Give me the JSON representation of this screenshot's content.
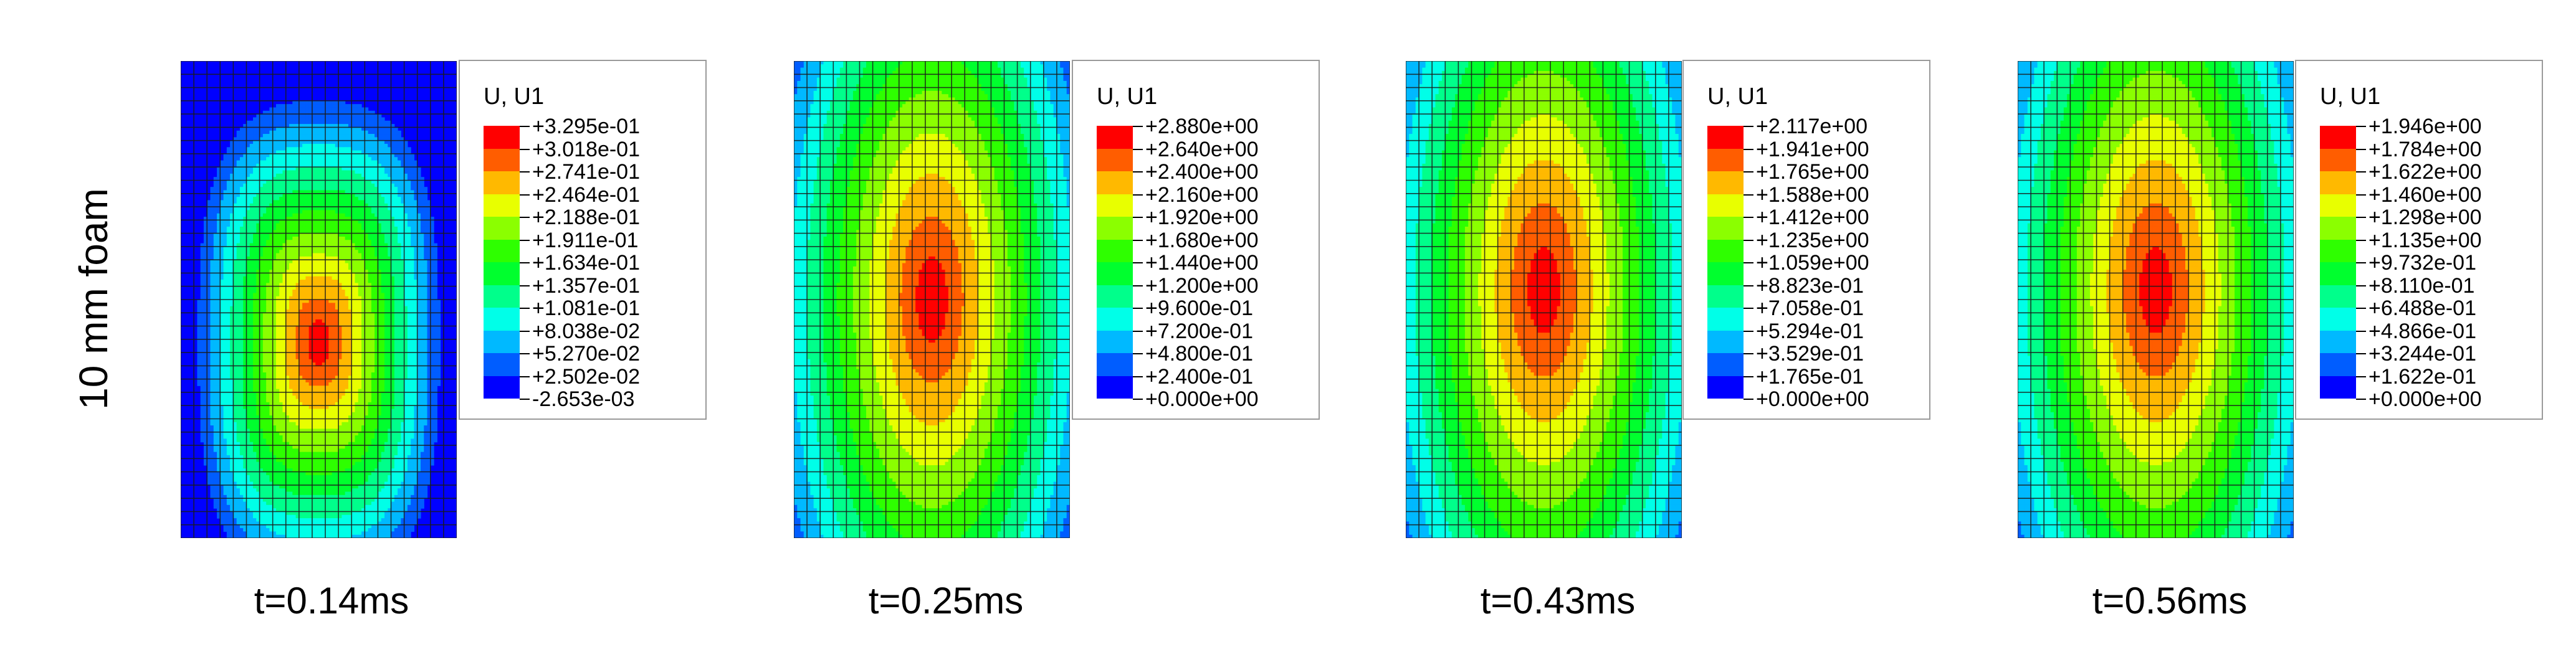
{
  "row_label": "10 mm foam",
  "colors": {
    "scale": [
      "#0000ff",
      "#005dff",
      "#00b9ff",
      "#00ffe8",
      "#00ff8b",
      "#00ff2e",
      "#2eff00",
      "#8bff00",
      "#e8ff00",
      "#ffb900",
      "#ff5d00",
      "#ff0000"
    ],
    "mesh_line": "#1a1a1a",
    "legend_border": "#9a9a9a"
  },
  "chart_data": [
    {
      "type": "heatmap",
      "title": "",
      "variable": "U, U1",
      "time_label": "t=0.14ms",
      "field": {
        "shape": "center-peak",
        "peak_center": [
          0.5,
          0.59
        ],
        "peak_radius": [
          0.5,
          0.58
        ]
      },
      "legend_values": [
        "+3.295e-01",
        "+3.018e-01",
        "+2.741e-01",
        "+2.464e-01",
        "+2.188e-01",
        "+1.911e-01",
        "+1.634e-01",
        "+1.357e-01",
        "+1.081e-01",
        "+8.038e-02",
        "+5.270e-02",
        "+2.502e-02",
        "-2.653e-03"
      ]
    },
    {
      "type": "heatmap",
      "title": "",
      "variable": "U, U1",
      "time_label": "t=0.25ms",
      "field": {
        "shape": "vertical-plume",
        "peak_center": [
          0.5,
          0.5
        ],
        "peak_radius": [
          0.68,
          1.05
        ]
      },
      "legend_values": [
        "+2.880e+00",
        "+2.640e+00",
        "+2.400e+00",
        "+2.160e+00",
        "+1.920e+00",
        "+1.680e+00",
        "+1.440e+00",
        "+1.200e+00",
        "+9.600e-01",
        "+7.200e-01",
        "+4.800e-01",
        "+2.400e-01",
        "+0.000e+00"
      ]
    },
    {
      "type": "heatmap",
      "title": "",
      "variable": "U, U1",
      "time_label": "t=0.43ms",
      "field": {
        "shape": "vertical-plume",
        "peak_center": [
          0.5,
          0.48
        ],
        "peak_radius": [
          0.7,
          1.1
        ]
      },
      "legend_values": [
        "+2.117e+00",
        "+1.941e+00",
        "+1.765e+00",
        "+1.588e+00",
        "+1.412e+00",
        "+1.235e+00",
        "+1.059e+00",
        "+8.823e-01",
        "+7.058e-01",
        "+5.294e-01",
        "+3.529e-01",
        "+1.765e-01",
        "+0.000e+00"
      ]
    },
    {
      "type": "heatmap",
      "title": "",
      "variable": "U, U1",
      "time_label": "t=0.56ms",
      "field": {
        "shape": "vertical-plume",
        "peak_center": [
          0.5,
          0.48
        ],
        "peak_radius": [
          0.7,
          1.1
        ]
      },
      "legend_values": [
        "+1.946e+00",
        "+1.784e+00",
        "+1.622e+00",
        "+1.460e+00",
        "+1.298e+00",
        "+1.135e+00",
        "+9.732e-01",
        "+8.110e-01",
        "+6.488e-01",
        "+4.866e-01",
        "+3.244e-01",
        "+1.622e-01",
        "+0.000e+00"
      ]
    }
  ]
}
